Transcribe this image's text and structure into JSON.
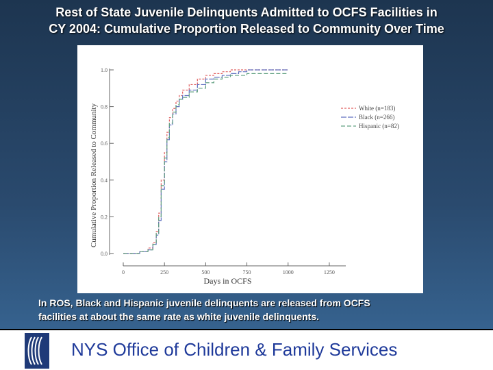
{
  "slide": {
    "title_line1": "Rest of State Juvenile Delinquents Admitted to OCFS Facilities in",
    "title_line2": "CY 2004: Cumulative Proportion Released to Community Over Time",
    "caption_line1": "In ROS, Black and Hispanic juvenile delinquents are released from OCFS",
    "caption_line2": "facilities at about the same rate as white juvenile delinquents.",
    "footer_org": "NYS Office of Children & Family Services"
  },
  "chart_data": {
    "type": "line",
    "title": "",
    "xlabel": "Days in OCFS",
    "ylabel": "Cumulative Proportion Released to Community",
    "xlim": [
      0,
      1350
    ],
    "ylim": [
      0,
      1.0
    ],
    "x_ticks": [
      "0",
      "250",
      "500",
      "750",
      "1000",
      "1250"
    ],
    "x_tick_values": [
      0,
      250,
      500,
      750,
      1000,
      1250
    ],
    "y_ticks": [
      "0.0",
      "0.2",
      "0.4",
      "0.6",
      "0.8",
      "1.0"
    ],
    "y_tick_values": [
      0.0,
      0.2,
      0.4,
      0.6,
      0.8,
      1.0
    ],
    "legend_position": "right",
    "series": [
      {
        "name": "White (n=183)",
        "color": "#e06060",
        "dash": "3,2",
        "x": [
          0,
          100,
          150,
          180,
          200,
          215,
          230,
          250,
          265,
          280,
          300,
          320,
          340,
          360,
          400,
          450,
          500,
          550,
          600,
          650,
          700,
          750,
          1000
        ],
        "y": [
          0,
          0.01,
          0.03,
          0.06,
          0.12,
          0.22,
          0.4,
          0.55,
          0.66,
          0.74,
          0.79,
          0.83,
          0.86,
          0.89,
          0.92,
          0.95,
          0.97,
          0.98,
          0.99,
          1.0,
          1.0,
          1.0,
          1.0
        ]
      },
      {
        "name": "Black (n=266)",
        "color": "#6070c0",
        "dash": "8,2",
        "x": [
          0,
          100,
          150,
          180,
          200,
          215,
          230,
          250,
          265,
          280,
          300,
          320,
          340,
          360,
          400,
          450,
          500,
          550,
          600,
          650,
          700,
          750,
          1000
        ],
        "y": [
          0,
          0.01,
          0.02,
          0.05,
          0.1,
          0.18,
          0.35,
          0.5,
          0.62,
          0.7,
          0.76,
          0.8,
          0.84,
          0.86,
          0.89,
          0.92,
          0.95,
          0.96,
          0.97,
          0.98,
          0.99,
          1.0,
          1.0
        ]
      },
      {
        "name": "Hispanic (n=82)",
        "color": "#60a080",
        "dash": "6,3",
        "x": [
          0,
          100,
          150,
          180,
          200,
          215,
          230,
          250,
          265,
          280,
          300,
          320,
          340,
          360,
          400,
          450,
          500,
          550,
          600,
          650,
          700,
          750,
          1000
        ],
        "y": [
          0,
          0.01,
          0.02,
          0.05,
          0.11,
          0.2,
          0.37,
          0.52,
          0.63,
          0.71,
          0.77,
          0.81,
          0.84,
          0.85,
          0.88,
          0.9,
          0.93,
          0.95,
          0.96,
          0.97,
          0.97,
          0.98,
          0.98
        ]
      }
    ]
  }
}
